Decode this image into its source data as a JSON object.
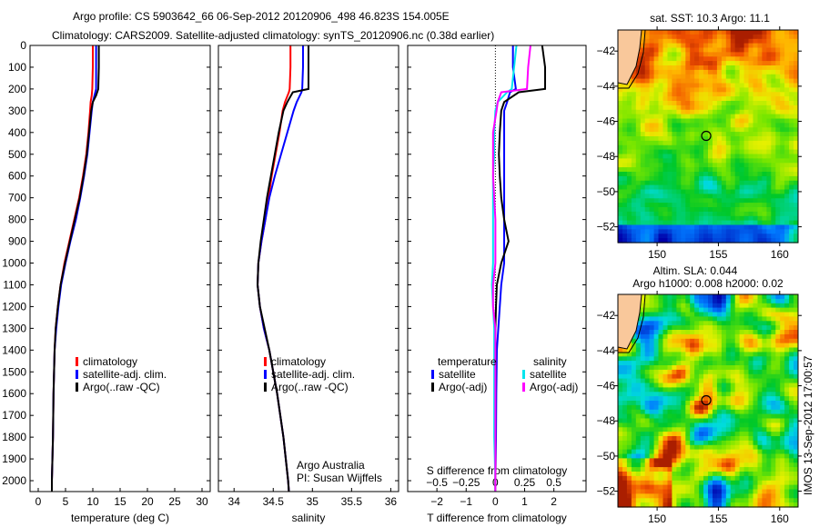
{
  "title_line1": "Argo profile: CS 5903642_66 06-Sep-2012 20120906_498 46.823S 154.005E",
  "title_line2": "Climatology: CARS2009. Satellite-adjusted climatology: synTS_20120906.nc (0.38d earlier)",
  "colors": {
    "climatology": "#ff0000",
    "satellite": "#0000ff",
    "argo": "#000000",
    "sal_satellite": "#00e5ee",
    "sal_argo": "#ff00ff"
  },
  "chart_data": [
    {
      "type": "line",
      "id": "temperature",
      "xlabel": "temperature (deg C)",
      "ylabel": "",
      "xlim": [
        -1.5,
        31.5
      ],
      "ylim": [
        2050,
        0
      ],
      "xticks": [
        0,
        5,
        10,
        15,
        20,
        25,
        30
      ],
      "yticks": [
        0,
        100,
        200,
        300,
        400,
        500,
        600,
        700,
        800,
        900,
        1000,
        1100,
        1200,
        1300,
        1400,
        1500,
        1600,
        1700,
        1800,
        1900,
        2000
      ],
      "legend": [
        "climatology",
        "satellite-adj. clim.",
        "Argo(..raw -QC)"
      ],
      "legend_position": "lower-center",
      "depth": [
        0,
        100,
        200,
        230,
        260,
        300,
        400,
        500,
        600,
        700,
        800,
        900,
        1000,
        1100,
        1200,
        1300,
        1400,
        1600,
        1800,
        2000,
        2050
      ],
      "series": [
        {
          "name": "climatology",
          "color_key": "climatology",
          "values": [
            10.0,
            10.0,
            9.9,
            9.8,
            9.6,
            9.5,
            9.2,
            8.8,
            8.2,
            7.5,
            6.6,
            5.7,
            4.8,
            4.1,
            3.6,
            3.2,
            3.0,
            2.8,
            2.7,
            2.5,
            2.5
          ]
        },
        {
          "name": "satellite-adj. clim.",
          "color_key": "satellite",
          "values": [
            10.6,
            10.6,
            10.6,
            10.3,
            10.0,
            9.8,
            9.4,
            9.0,
            8.4,
            7.7,
            6.9,
            5.9,
            5.0,
            4.2,
            3.7,
            3.3,
            3.0,
            2.8,
            2.7,
            2.5,
            2.5
          ]
        },
        {
          "name": "Argo(..raw -QC)",
          "color_key": "argo",
          "values": [
            11.1,
            11.1,
            11.0,
            10.6,
            10.0,
            9.7,
            9.3,
            8.9,
            8.3,
            7.6,
            6.7,
            5.8,
            4.9,
            4.1,
            3.6,
            3.2,
            3.0,
            2.8,
            2.7,
            2.5,
            2.5
          ]
        }
      ]
    },
    {
      "type": "line",
      "id": "salinity",
      "xlabel": "salinity",
      "xlim": [
        33.8,
        36.1
      ],
      "ylim": [
        2050,
        0
      ],
      "xticks": [
        34,
        34.5,
        35,
        35.5,
        36
      ],
      "legend": [
        "climatology",
        "satellite-adj. clim.",
        "Argo(..raw -QC)"
      ],
      "legend_position": "lower-center",
      "annotation": [
        "Argo Australia",
        "PI: Susan Wijffels"
      ],
      "depth": [
        0,
        100,
        200,
        215,
        260,
        300,
        400,
        500,
        600,
        700,
        800,
        900,
        1000,
        1100,
        1200,
        1300,
        1400,
        1500,
        1600,
        1800,
        2000,
        2050
      ],
      "series": [
        {
          "name": "climatology",
          "color_key": "climatology",
          "values": [
            34.72,
            34.72,
            34.71,
            34.7,
            34.65,
            34.62,
            34.58,
            34.53,
            34.48,
            34.44,
            34.4,
            34.35,
            34.31,
            34.3,
            34.33,
            34.38,
            34.45,
            34.5,
            34.55,
            34.63,
            34.69,
            34.7
          ]
        },
        {
          "name": "satellite-adj. clim.",
          "color_key": "satellite",
          "values": [
            34.88,
            34.88,
            34.87,
            34.86,
            34.8,
            34.76,
            34.68,
            34.6,
            34.52,
            34.45,
            34.4,
            34.35,
            34.31,
            34.3,
            34.33,
            34.38,
            34.45,
            34.5,
            34.55,
            34.63,
            34.69,
            34.7
          ]
        },
        {
          "name": "Argo(..raw -QC)",
          "color_key": "argo",
          "values": [
            34.95,
            34.95,
            34.95,
            34.75,
            34.68,
            34.63,
            34.57,
            34.52,
            34.47,
            34.42,
            34.38,
            34.34,
            34.31,
            34.3,
            34.33,
            34.39,
            34.45,
            34.5,
            34.55,
            34.63,
            34.69,
            34.7
          ]
        }
      ]
    },
    {
      "type": "line",
      "id": "difference",
      "xlabel": "T difference from climatology",
      "x2label": "S difference from climatology",
      "xlim": [
        -3,
        3.1
      ],
      "x2lim": [
        -0.75,
        0.775
      ],
      "ylim": [
        2050,
        0
      ],
      "xticks": [
        -2,
        -1,
        0,
        1,
        2
      ],
      "x2ticks": [
        -0.5,
        -0.25,
        0,
        0.25,
        0.5
      ],
      "legend_headers": [
        "temperature",
        "salinity"
      ],
      "legend": [
        "satellite",
        "Argo(-adj)",
        "satellite",
        "Argo(-adj)"
      ],
      "legend_position": "lower-center",
      "depth": [
        0,
        100,
        200,
        215,
        260,
        300,
        400,
        500,
        600,
        700,
        800,
        900,
        1000,
        1100,
        1200,
        1300,
        1400,
        1600,
        1800,
        2000,
        2050
      ],
      "series": [
        {
          "name": "T satellite",
          "color_key": "satellite",
          "axis": "T",
          "values": [
            0.6,
            0.6,
            0.7,
            0.5,
            0.4,
            0.3,
            0.3,
            0.3,
            0.3,
            0.3,
            0.3,
            0.3,
            0.3,
            0.2,
            0.15,
            0.1,
            0.05,
            0.03,
            0.02,
            0.0,
            0.0
          ]
        },
        {
          "name": "T Argo(-adj)",
          "color_key": "argo",
          "axis": "T",
          "values": [
            1.6,
            1.7,
            1.7,
            0.8,
            0.3,
            0.2,
            0.15,
            0.12,
            0.15,
            0.2,
            0.3,
            0.45,
            0.2,
            0.05,
            0.02,
            0.0,
            0.0,
            0.0,
            0.0,
            0.0,
            0.0
          ]
        },
        {
          "name": "S satellite",
          "color_key": "sal_satellite",
          "axis": "S",
          "values": [
            0.18,
            0.16,
            0.14,
            0.1,
            0.02,
            0.0,
            -0.01,
            -0.01,
            -0.02,
            -0.02,
            -0.02,
            -0.02,
            -0.02,
            -0.03,
            -0.02,
            -0.01,
            -0.01,
            -0.01,
            -0.01,
            0.0,
            0.0
          ]
        },
        {
          "name": "S Argo(-adj)",
          "color_key": "sal_argo",
          "axis": "S",
          "values": [
            0.3,
            0.28,
            0.27,
            0.05,
            0.02,
            0.01,
            -0.02,
            -0.02,
            -0.02,
            -0.01,
            0.0,
            0.0,
            0.0,
            -0.02,
            -0.02,
            0.0,
            0.0,
            0.0,
            0.0,
            0.0,
            0.0
          ]
        }
      ]
    },
    {
      "type": "heatmap",
      "id": "sst_map",
      "title": "sat. SST: 10.3 Argo: 11.1",
      "xlim": [
        146.8,
        161.5
      ],
      "ylim": [
        -52.9,
        -40.8
      ],
      "xticks": [
        150,
        155,
        160
      ],
      "yticks": [
        -42,
        -44,
        -46,
        -48,
        -50,
        -52
      ],
      "argo_position": {
        "lon": 154.005,
        "lat": -46.823
      }
    },
    {
      "type": "heatmap",
      "id": "sla_map",
      "title_line1": "Altim. SLA: 0.044",
      "title_line2": "Argo h1000: 0.008 h2000: 0.02",
      "xlim": [
        146.8,
        161.5
      ],
      "ylim": [
        -52.9,
        -40.8
      ],
      "xticks": [
        150,
        155,
        160
      ],
      "yticks": [
        -42,
        -44,
        -46,
        -48,
        -50,
        -52
      ],
      "argo_position": {
        "lon": 154.005,
        "lat": -46.823
      }
    }
  ],
  "footer_stamp": "IMOS 13-Sep-2012 17:00:57"
}
